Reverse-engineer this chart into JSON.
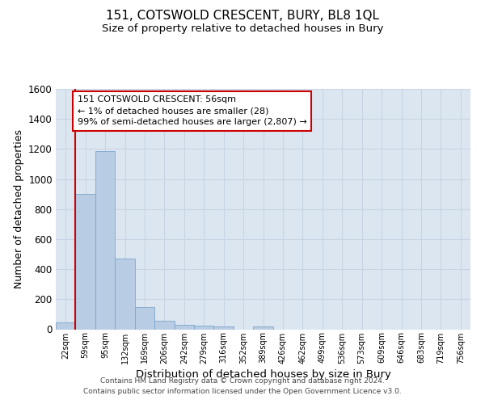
{
  "title_line1": "151, COTSWOLD CRESCENT, BURY, BL8 1QL",
  "title_line2": "Size of property relative to detached houses in Bury",
  "xlabel": "Distribution of detached houses by size in Bury",
  "ylabel": "Number of detached properties",
  "categories": [
    "22sqm",
    "59sqm",
    "95sqm",
    "132sqm",
    "169sqm",
    "206sqm",
    "242sqm",
    "279sqm",
    "316sqm",
    "352sqm",
    "389sqm",
    "426sqm",
    "462sqm",
    "499sqm",
    "536sqm",
    "573sqm",
    "609sqm",
    "646sqm",
    "683sqm",
    "719sqm",
    "756sqm"
  ],
  "values": [
    45,
    900,
    1185,
    470,
    150,
    55,
    30,
    25,
    20,
    0,
    20,
    0,
    0,
    0,
    0,
    0,
    0,
    0,
    0,
    0,
    0
  ],
  "bar_color": "#b8cce4",
  "bar_edge_color": "#7da6cc",
  "ylim": [
    0,
    1600
  ],
  "yticks": [
    0,
    200,
    400,
    600,
    800,
    1000,
    1200,
    1400,
    1600
  ],
  "annotation_line1": "151 COTSWOLD CRESCENT: 56sqm",
  "annotation_line2": "← 1% of detached houses are smaller (28)",
  "annotation_line3": "99% of semi-detached houses are larger (2,807) →",
  "annotation_box_edgecolor": "#cc0000",
  "vline_color": "#cc0000",
  "vline_x": 1.0,
  "footer_line1": "Contains HM Land Registry data © Crown copyright and database right 2024.",
  "footer_line2": "Contains public sector information licensed under the Open Government Licence v3.0.",
  "grid_color": "#c8d4e4",
  "bg_color": "#dce6f0"
}
